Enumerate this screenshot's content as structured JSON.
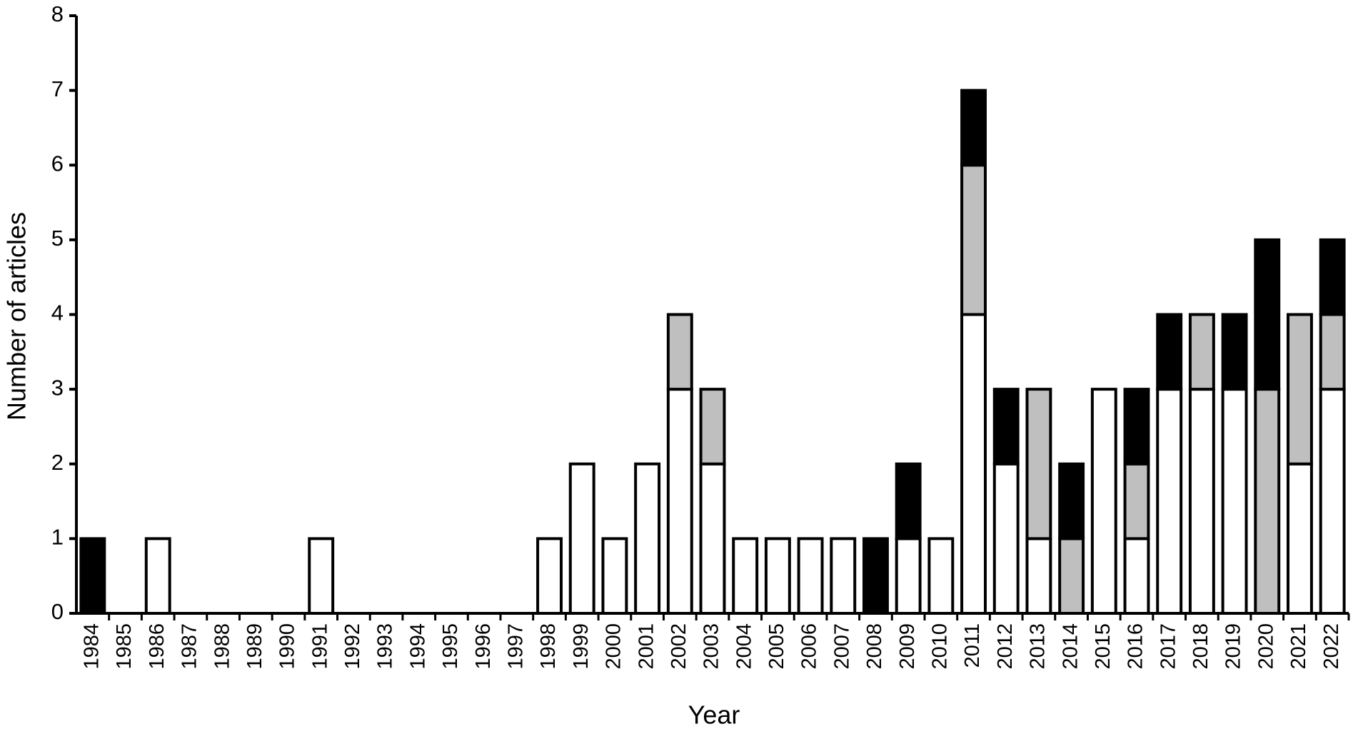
{
  "chart_data": {
    "type": "stacked_bar",
    "xlabel": "Year",
    "ylabel": "Number of articles",
    "categories": [
      "1984",
      "1985",
      "1986",
      "1987",
      "1988",
      "1989",
      "1990",
      "1991",
      "1992",
      "1993",
      "1994",
      "1995",
      "1996",
      "1997",
      "1998",
      "1999",
      "2000",
      "2001",
      "2002",
      "2003",
      "2004",
      "2005",
      "2006",
      "2007",
      "2008",
      "2009",
      "2010",
      "2011",
      "2012",
      "2013",
      "2014",
      "2015",
      "2016",
      "2017",
      "2018",
      "2019",
      "2020",
      "2021",
      "2022"
    ],
    "series": [
      {
        "color": "#ffffff",
        "values": [
          0,
          0,
          1,
          0,
          0,
          0,
          0,
          1,
          0,
          0,
          0,
          0,
          0,
          0,
          1,
          2,
          1,
          2,
          3,
          2,
          1,
          1,
          1,
          1,
          0,
          1,
          1,
          4,
          2,
          1,
          0,
          3,
          1,
          3,
          3,
          3,
          0,
          2,
          3
        ]
      },
      {
        "color": "#bfbfbf",
        "values": [
          0,
          0,
          0,
          0,
          0,
          0,
          0,
          0,
          0,
          0,
          0,
          0,
          0,
          0,
          0,
          0,
          0,
          0,
          1,
          1,
          0,
          0,
          0,
          0,
          0,
          0,
          0,
          2,
          0,
          2,
          1,
          0,
          1,
          0,
          1,
          0,
          3,
          2,
          1
        ]
      },
      {
        "color": "#000000",
        "values": [
          1,
          0,
          0,
          0,
          0,
          0,
          0,
          0,
          0,
          0,
          0,
          0,
          0,
          0,
          0,
          0,
          0,
          0,
          0,
          0,
          0,
          0,
          0,
          0,
          1,
          1,
          0,
          1,
          1,
          0,
          1,
          0,
          1,
          1,
          0,
          1,
          2,
          0,
          1
        ]
      }
    ],
    "ylim": [
      0,
      8
    ],
    "yticks": [
      0,
      1,
      2,
      3,
      4,
      5,
      6,
      7,
      8
    ]
  }
}
